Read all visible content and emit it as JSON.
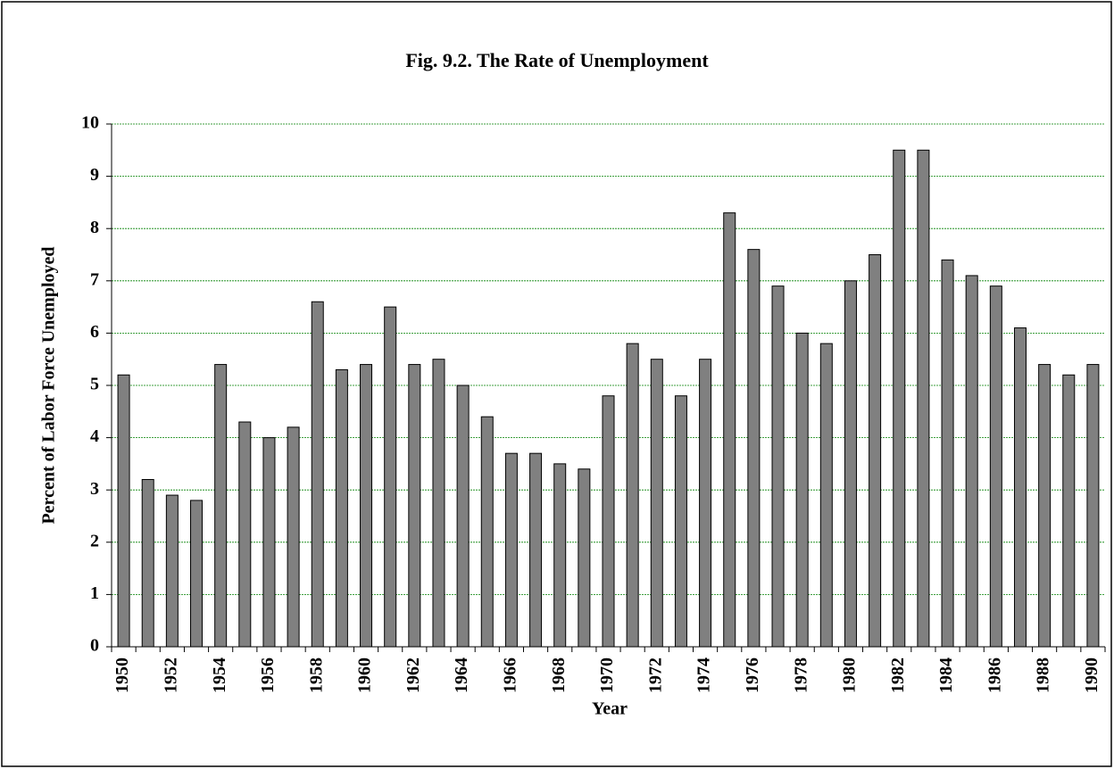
{
  "chart_data": {
    "type": "bar",
    "title": "Fig. 9.2. The Rate of Unemployment",
    "x_label": "Year",
    "y_label": "Percent of Labor Force Unemployed",
    "categories": [
      "1950",
      null,
      "1952",
      null,
      "1954",
      null,
      "1956",
      null,
      "1958",
      null,
      "1960",
      null,
      "1962",
      null,
      "1964",
      null,
      "1966",
      null,
      "1968",
      null,
      "1970",
      null,
      "1972",
      null,
      "1974",
      null,
      "1976",
      null,
      "1978",
      null,
      "1980",
      null,
      "1982",
      null,
      "1984",
      null,
      "1986",
      null,
      "1988",
      null,
      "1990"
    ],
    "values": [
      5.2,
      3.2,
      2.9,
      2.8,
      5.4,
      4.3,
      4.0,
      4.2,
      6.6,
      5.3,
      5.4,
      6.5,
      5.4,
      5.5,
      5.0,
      4.4,
      3.7,
      3.7,
      3.5,
      3.4,
      4.8,
      5.8,
      5.5,
      4.8,
      5.5,
      8.3,
      7.6,
      6.9,
      6.0,
      5.8,
      7.0,
      7.5,
      9.5,
      9.5,
      7.4,
      7.1,
      6.9,
      6.1,
      5.4,
      5.2,
      5.4
    ],
    "color": "#808080",
    "grid": true,
    "grid_color": "#008000",
    "ylim": [
      0,
      10
    ],
    "yticks": [
      0,
      1,
      2,
      3,
      4,
      5,
      6,
      7,
      8,
      9,
      10
    ]
  }
}
